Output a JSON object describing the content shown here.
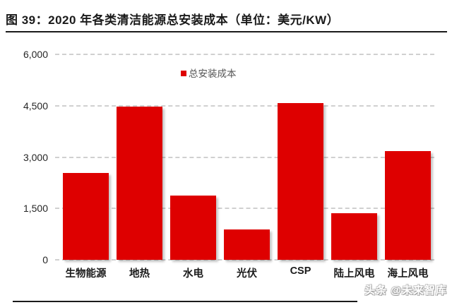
{
  "title": "图 39：2020 年各类清洁能源总安装成本（单位：美元/KW）",
  "watermark": "头条 @未来智库",
  "colors": {
    "bar": "#de0000",
    "rule": "#1a1a1a",
    "gridline": "#d0d0d0"
  },
  "chart_data": {
    "type": "bar",
    "title": "2020 年各类清洁能源总安装成本",
    "unit": "美元/KW",
    "legend": "总安装成本",
    "legend_position": "top-center",
    "categories": [
      "生物能源",
      "地热",
      "水电",
      "光伏",
      "CSP",
      "陆上风电",
      "海上风电"
    ],
    "values": [
      2543,
      4468,
      1870,
      883,
      4581,
      1355,
      3185
    ],
    "ylim": [
      0,
      6000
    ],
    "yticks": [
      0,
      1500,
      3000,
      4500,
      6000
    ],
    "ytick_labels": [
      "0",
      "1,500",
      "3,000",
      "4,500",
      "6,000"
    ],
    "grid": "dashed-horizontal"
  }
}
